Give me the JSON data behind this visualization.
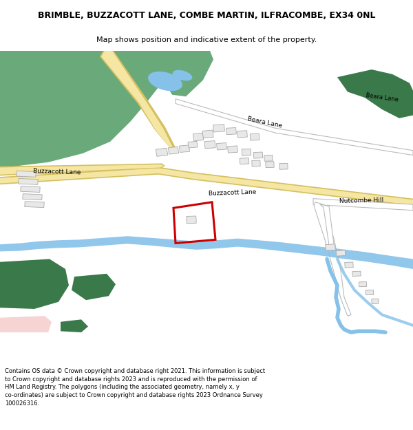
{
  "title": "BRIMBLE, BUZZACOTT LANE, COMBE MARTIN, ILFRACOMBE, EX34 0NL",
  "subtitle": "Map shows position and indicative extent of the property.",
  "footer": "Contains OS data © Crown copyright and database right 2021. This information is subject\nto Crown copyright and database rights 2023 and is reproduced with the permission of\nHM Land Registry. The polygons (including the associated geometry, namely x, y\nco-ordinates) are subject to Crown copyright and database rights 2023 Ordnance Survey\n100026316.",
  "bg_color": "#ffffff",
  "green1": "#6aaa7a",
  "green2": "#4a8a5a",
  "green_dark": "#3a7a4a",
  "blue_water": "#85c1e9",
  "road_yellow": "#f5e6a3",
  "road_yellow_border": "#d4c060",
  "road_gray_border": "#bbbbbb",
  "building_fill": "#e8e8e8",
  "building_edge": "#aaaaaa",
  "plot_red": "#cc0000",
  "pink": "#f4c2c2"
}
